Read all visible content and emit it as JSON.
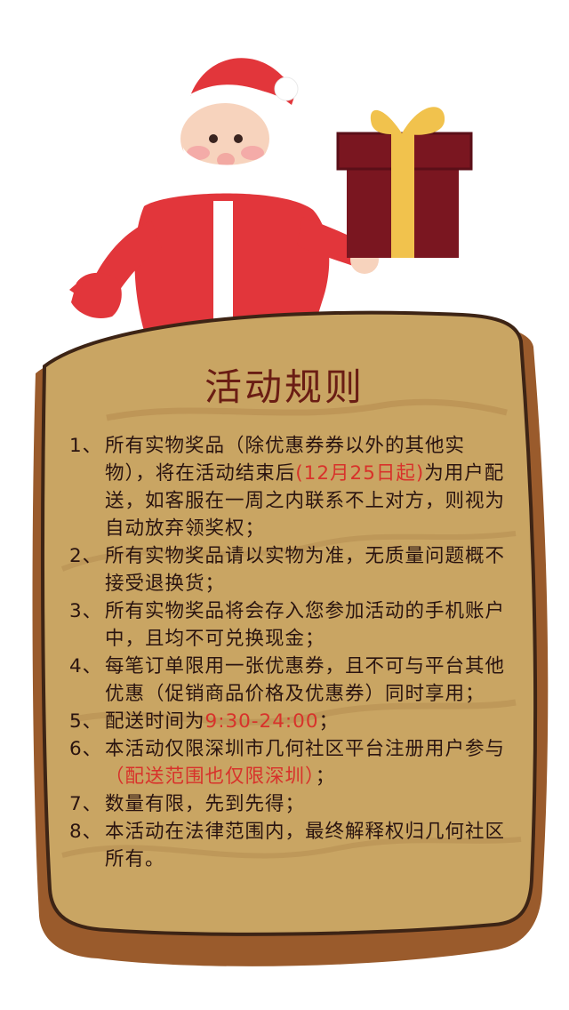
{
  "colors": {
    "title": "#6a1d14",
    "highlight": "#d8322b",
    "parchment": "#c9a563",
    "parchment_edge": "#9a5b2c",
    "santa_red": "#e2363b",
    "gift_box": "#7a1620",
    "gift_ribbon": "#f1c24d"
  },
  "icons": {
    "santa": "santa-claus-icon",
    "gift": "gift-box-icon"
  },
  "title": "活动规则",
  "rules": [
    {
      "num": "1、",
      "parts": [
        {
          "text": "所有实物奖品（除优惠券券以外的其他实物），将在活动结束后",
          "highlight": false
        },
        {
          "text": "(12月25日起)",
          "highlight": true
        },
        {
          "text": "为用户配送，如客服在一周之内联系不上对方，则视为自动放弃领奖权；",
          "highlight": false
        }
      ]
    },
    {
      "num": "2、",
      "parts": [
        {
          "text": "所有实物奖品请以实物为准，无质量问题概不接受退换货；",
          "highlight": false
        }
      ]
    },
    {
      "num": "3、",
      "parts": [
        {
          "text": "所有实物奖品将会存入您参加活动的手机账户中，且均不可兑换现金；",
          "highlight": false
        }
      ]
    },
    {
      "num": "4、",
      "parts": [
        {
          "text": "每笔订单限用一张优惠券，且不可与平台其他优惠（促销商品价格及优惠券）同时享用；",
          "highlight": false
        }
      ]
    },
    {
      "num": "5、",
      "parts": [
        {
          "text": "配送时间为",
          "highlight": false
        },
        {
          "text": "9:30-24:00",
          "highlight": true
        },
        {
          "text": "；",
          "highlight": false
        }
      ]
    },
    {
      "num": "6、",
      "parts": [
        {
          "text": "本活动仅限深圳市几何社区平台注册用户参与",
          "highlight": false
        },
        {
          "text": "（配送范围也仅限深圳）",
          "highlight": true
        },
        {
          "text": "；",
          "highlight": false
        }
      ]
    },
    {
      "num": "7、",
      "parts": [
        {
          "text": "数量有限，先到先得；",
          "highlight": false
        }
      ]
    },
    {
      "num": "8、",
      "parts": [
        {
          "text": "本活动在法律范围内，最终解释权归几何社区所有。",
          "highlight": false
        }
      ]
    }
  ]
}
